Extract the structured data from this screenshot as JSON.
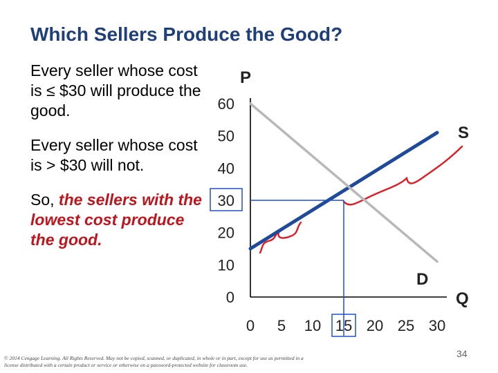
{
  "slide": {
    "title": "Which Sellers Produce the Good?",
    "para1": "Every seller whose cost is ≤ $30 will produce the good.",
    "para2": "Every seller whose cost is > $30 will not.",
    "para3_prefix": "So, ",
    "para3_emphasis": "the sellers with the lowest cost produce the good.",
    "copyright": "© 2014 Cengage Learning. All Rights Reserved. May not be copied, scanned, or duplicated, in whole or in part, except for use as permitted in a license distributed with a certain product or service or otherwise on a password-protected website for classroom use.",
    "page_number": "34"
  },
  "colors": {
    "title": "#1f3f7a",
    "emphasis": "#c0141c",
    "supply": "#1f4a9c",
    "demand": "#b8b8b8",
    "guides": "#1f4fd1",
    "braces": "#e21a22"
  },
  "chart_data": {
    "type": "line",
    "xlabel": "Q",
    "ylabel": "P",
    "xlim": [
      0,
      30
    ],
    "ylim": [
      0,
      60
    ],
    "x_ticks": [
      0,
      5,
      10,
      15,
      20,
      25,
      30
    ],
    "y_ticks": [
      0,
      10,
      20,
      30,
      40,
      50,
      60
    ],
    "series": [
      {
        "name": "S",
        "points": [
          [
            0,
            15
          ],
          [
            30,
            51
          ]
        ]
      },
      {
        "name": "D",
        "points": [
          [
            0,
            60
          ],
          [
            30,
            11
          ]
        ]
      }
    ],
    "highlight": {
      "x": 15,
      "y": 30
    },
    "grid": false
  }
}
